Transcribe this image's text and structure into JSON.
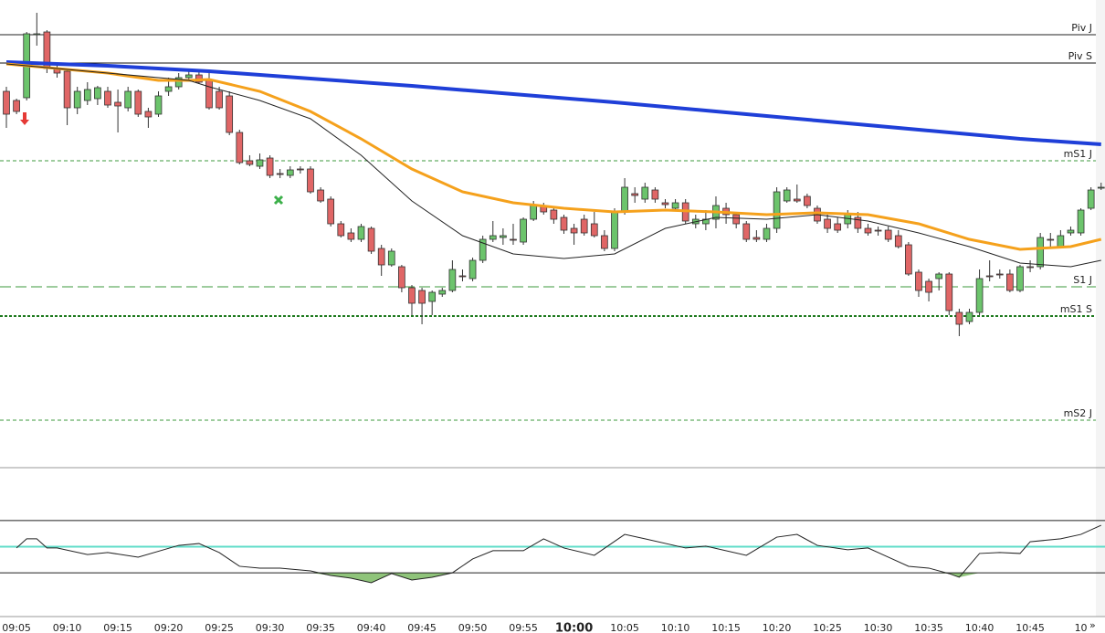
{
  "chart_data": {
    "type": "candlestick",
    "xlim": [
      -0.63,
      107.48
    ],
    "ylim": [
      0,
      102
    ],
    "xticks": [
      {
        "value": 1,
        "label": "09:05"
      },
      {
        "value": 6,
        "label": "09:10"
      },
      {
        "value": 11,
        "label": "09:15"
      },
      {
        "value": 16,
        "label": "09:20"
      },
      {
        "value": 21,
        "label": "09:25"
      },
      {
        "value": 26,
        "label": "09:30"
      },
      {
        "value": 31,
        "label": "09:35"
      },
      {
        "value": 36,
        "label": "09:40"
      },
      {
        "value": 41,
        "label": "09:45"
      },
      {
        "value": 46,
        "label": "09:50"
      },
      {
        "value": 51,
        "label": "09:55"
      },
      {
        "value": 56,
        "label": "10:00"
      },
      {
        "value": 61,
        "label": "10:05"
      },
      {
        "value": 66,
        "label": "10:10"
      },
      {
        "value": 71,
        "label": "10:15"
      },
      {
        "value": 76,
        "label": "10:20"
      },
      {
        "value": 81,
        "label": "10:25"
      },
      {
        "value": 86,
        "label": "10:30"
      },
      {
        "value": 91,
        "label": "10:35"
      },
      {
        "value": 96,
        "label": "10:40"
      },
      {
        "value": 101,
        "label": "10:45"
      },
      {
        "value": 106,
        "label": "10"
      }
    ],
    "major_tick_index": 11,
    "scroll_button": "»",
    "up_color": "#6cc46c",
    "down_color": "#e06666",
    "open": [
      82,
      80,
      80.6,
      94.4,
      95,
      87,
      86.4,
      78.4,
      80,
      80.4,
      82,
      79.6,
      78.4,
      82,
      77.6,
      77,
      82,
      83,
      85,
      85.6,
      84.4,
      82,
      81,
      73,
      66.8,
      65.6,
      67.4,
      64,
      63.6,
      65,
      65,
      60.4,
      58.4,
      53,
      51,
      49.6,
      52,
      47.6,
      44,
      43.6,
      39,
      38.4,
      36,
      37.6,
      38.4,
      41.6,
      41,
      45,
      49.6,
      50,
      49.6,
      49,
      54,
      56.8,
      56,
      54.4,
      52,
      54,
      53,
      50.4,
      47.6,
      55.6,
      59.6,
      58.4,
      60.4,
      57.6,
      56.4,
      57.6,
      53,
      53,
      54,
      56.4,
      55,
      53,
      50,
      49.6,
      52,
      58,
      58.4,
      59,
      56.4,
      54,
      53,
      53,
      54.4,
      52,
      51.6,
      51.6,
      50.4,
      48.4,
      42.4,
      40.4,
      41,
      42,
      33.6,
      31.6,
      33.6,
      41.6,
      42,
      42,
      38.4,
      43.6,
      43.6,
      49.6,
      48,
      51,
      51,
      56.4,
      60.8
    ],
    "high": [
      83,
      80.4,
      95,
      99.2,
      95.4,
      88,
      87,
      83,
      84,
      83.2,
      83,
      82.4,
      83,
      82.4,
      78.4,
      82,
      85,
      86,
      87,
      86.4,
      86.4,
      83,
      82,
      73.6,
      68,
      68.4,
      68,
      65,
      65.6,
      65.6,
      65.6,
      61,
      59,
      53.6,
      52,
      53,
      52.4,
      48.4,
      47.6,
      44,
      39.6,
      39,
      38.4,
      39,
      45,
      43,
      45.6,
      50.4,
      53.6,
      52,
      53,
      54.4,
      58,
      57.6,
      56.4,
      55,
      53,
      55,
      55.6,
      51.6,
      56.4,
      63,
      61,
      62,
      61,
      58.4,
      58.4,
      58.4,
      55,
      56,
      59,
      57.6,
      55.6,
      53.6,
      51.6,
      53,
      61,
      61,
      61.6,
      59.6,
      57,
      55,
      54.4,
      56,
      55.6,
      53,
      52.4,
      52.4,
      51.6,
      49,
      43,
      41,
      42.4,
      42.4,
      34.4,
      34.4,
      43,
      45,
      43,
      43,
      44,
      45,
      51,
      51,
      51.6,
      52.4,
      56.4,
      61,
      62
    ],
    "low": [
      74,
      77,
      80,
      92,
      86,
      85,
      74.6,
      77,
      79,
      79,
      78.4,
      73,
      77.6,
      76.4,
      74,
      76.4,
      81,
      82.4,
      84.4,
      83.6,
      78,
      78,
      72.4,
      66,
      65.6,
      65,
      63,
      63,
      63,
      64,
      59.6,
      57.6,
      52.4,
      50,
      49,
      49,
      46.4,
      41.6,
      43.6,
      38,
      33,
      31,
      33,
      37,
      38,
      40.4,
      40.4,
      44.4,
      49,
      48.4,
      48.4,
      48.4,
      53.6,
      55,
      53,
      50.8,
      48.4,
      50.4,
      50,
      47,
      47,
      55,
      57.6,
      57.6,
      57.6,
      56.4,
      56,
      53,
      52,
      51.6,
      52,
      53,
      52,
      49,
      49,
      49,
      51,
      57.6,
      57.6,
      56.4,
      53,
      51,
      51,
      52,
      51,
      50.4,
      50.4,
      49,
      47.6,
      41.6,
      37,
      36,
      38.4,
      33,
      28.4,
      31,
      33,
      40.4,
      41,
      38,
      38,
      42.4,
      43,
      48,
      47.6,
      50.4,
      50.4,
      56,
      60.4
    ],
    "close": [
      77,
      77.6,
      94.6,
      94.6,
      87,
      86,
      78.4,
      82,
      82.4,
      82.8,
      79,
      78.8,
      82,
      77,
      76.4,
      81,
      83,
      85,
      85.6,
      84,
      78.4,
      78.4,
      73,
      66.4,
      66,
      67,
      63.6,
      64,
      64.8,
      64.8,
      60,
      58,
      53,
      50.4,
      49.6,
      52.4,
      47,
      44,
      47,
      39,
      35.6,
      35.6,
      38,
      38.4,
      43,
      41.6,
      45,
      49.6,
      50.4,
      50.4,
      49.4,
      54,
      57,
      55.6,
      54,
      51.6,
      51,
      51,
      50.4,
      47.6,
      55.6,
      61,
      59.2,
      61,
      58.4,
      57.2,
      57.6,
      53.6,
      54,
      54,
      57,
      55,
      53,
      49.6,
      49.6,
      52,
      60,
      60.4,
      58,
      57,
      53.6,
      52,
      51.6,
      55,
      52,
      51,
      51.6,
      49.6,
      48,
      42,
      38.4,
      38,
      42,
      34,
      31,
      33.6,
      41,
      41.4,
      42,
      38.4,
      43.6,
      43.6,
      50,
      49.6,
      50.4,
      51.6,
      56,
      60.4,
      61
    ],
    "lines": [
      {
        "color": "#1f3fd8",
        "width": 4,
        "x": [
          0,
          10,
          20,
          30,
          40,
          50,
          60,
          70,
          80,
          90,
          100,
          108
        ],
        "values": [
          88.4,
          87.6,
          86.4,
          84.8,
          83.2,
          81.4,
          79.6,
          77.6,
          75.6,
          73.6,
          71.6,
          70.4
        ]
      },
      {
        "color": "#f5a11c",
        "width": 3,
        "x": [
          0,
          5,
          10,
          15,
          18,
          20,
          25,
          30,
          35,
          40,
          45,
          50,
          55,
          60,
          65,
          70,
          75,
          80,
          85,
          90,
          95,
          100,
          105,
          108
        ],
        "values": [
          88,
          87,
          86,
          84.4,
          84.4,
          84.6,
          82,
          77.6,
          71.6,
          65,
          60,
          57.6,
          56.4,
          55.6,
          56,
          55.6,
          55,
          55.4,
          55,
          53,
          49.6,
          47.4,
          48,
          49.6
        ]
      },
      {
        "color": "#222222",
        "width": 1,
        "x": [
          0,
          10,
          18,
          20,
          25,
          30,
          35,
          40,
          45,
          50,
          55,
          60,
          65,
          70,
          75,
          80,
          85,
          90,
          95,
          100,
          105,
          108
        ],
        "values": [
          88,
          86,
          84.4,
          83,
          80,
          76,
          68,
          58,
          50.4,
          46.4,
          45.4,
          46.4,
          52,
          54.4,
          54,
          55,
          53.6,
          51,
          48,
          44.4,
          43.6,
          45
        ]
      }
    ],
    "levels": [
      {
        "label": "Piv J",
        "value": 94.4,
        "color": "#222222",
        "style": "solid"
      },
      {
        "label": "Piv S",
        "value": 88.2,
        "color": "#111111",
        "style": "solid"
      },
      {
        "label": "mS1 J",
        "value": 66.8,
        "color": "#3c9a3c",
        "style": "dashed"
      },
      {
        "label": "S1 J",
        "value": 39.2,
        "color": "#3c9a3c",
        "style": "longdash"
      },
      {
        "label": "mS1 S",
        "value": 32.8,
        "color": "#1f7a1f",
        "style": "dotted"
      },
      {
        "label": "mS2 J",
        "value": 10,
        "color": "#3c9a3c",
        "style": "dashed"
      }
    ],
    "oscillator": {
      "type": "line",
      "ylim": [
        0,
        100
      ],
      "levels": [
        70,
        50,
        30
      ],
      "level_colors": [
        "#222222",
        "#5fdcc8",
        "#222222"
      ],
      "fill_color": "#8fc47a",
      "x": [
        1,
        2,
        3,
        4,
        5,
        8,
        10,
        13,
        17,
        19,
        21,
        23,
        25,
        27,
        30,
        32,
        34,
        36,
        38,
        40,
        42,
        44,
        46,
        48,
        51,
        53,
        55,
        58,
        61,
        63,
        67,
        69,
        73,
        76,
        78,
        80,
        83,
        85,
        87,
        89,
        91,
        93,
        94,
        96,
        98,
        100,
        101,
        104,
        106,
        108
      ],
      "values": [
        49,
        56,
        56,
        49,
        49,
        44,
        45.5,
        42,
        51,
        52.4,
        45.5,
        35,
        33.6,
        33.6,
        31.5,
        28,
        25.9,
        22.4,
        29.4,
        24.5,
        26.6,
        30,
        40.6,
        46.9,
        46.9,
        56,
        49,
        43.4,
        59.4,
        56,
        49,
        50.4,
        43.4,
        57.3,
        59.4,
        51,
        47.6,
        49,
        42,
        35,
        33.6,
        29.4,
        26.6,
        44.8,
        45.5,
        44.8,
        53.8,
        56,
        59.4,
        66.4
      ]
    }
  }
}
